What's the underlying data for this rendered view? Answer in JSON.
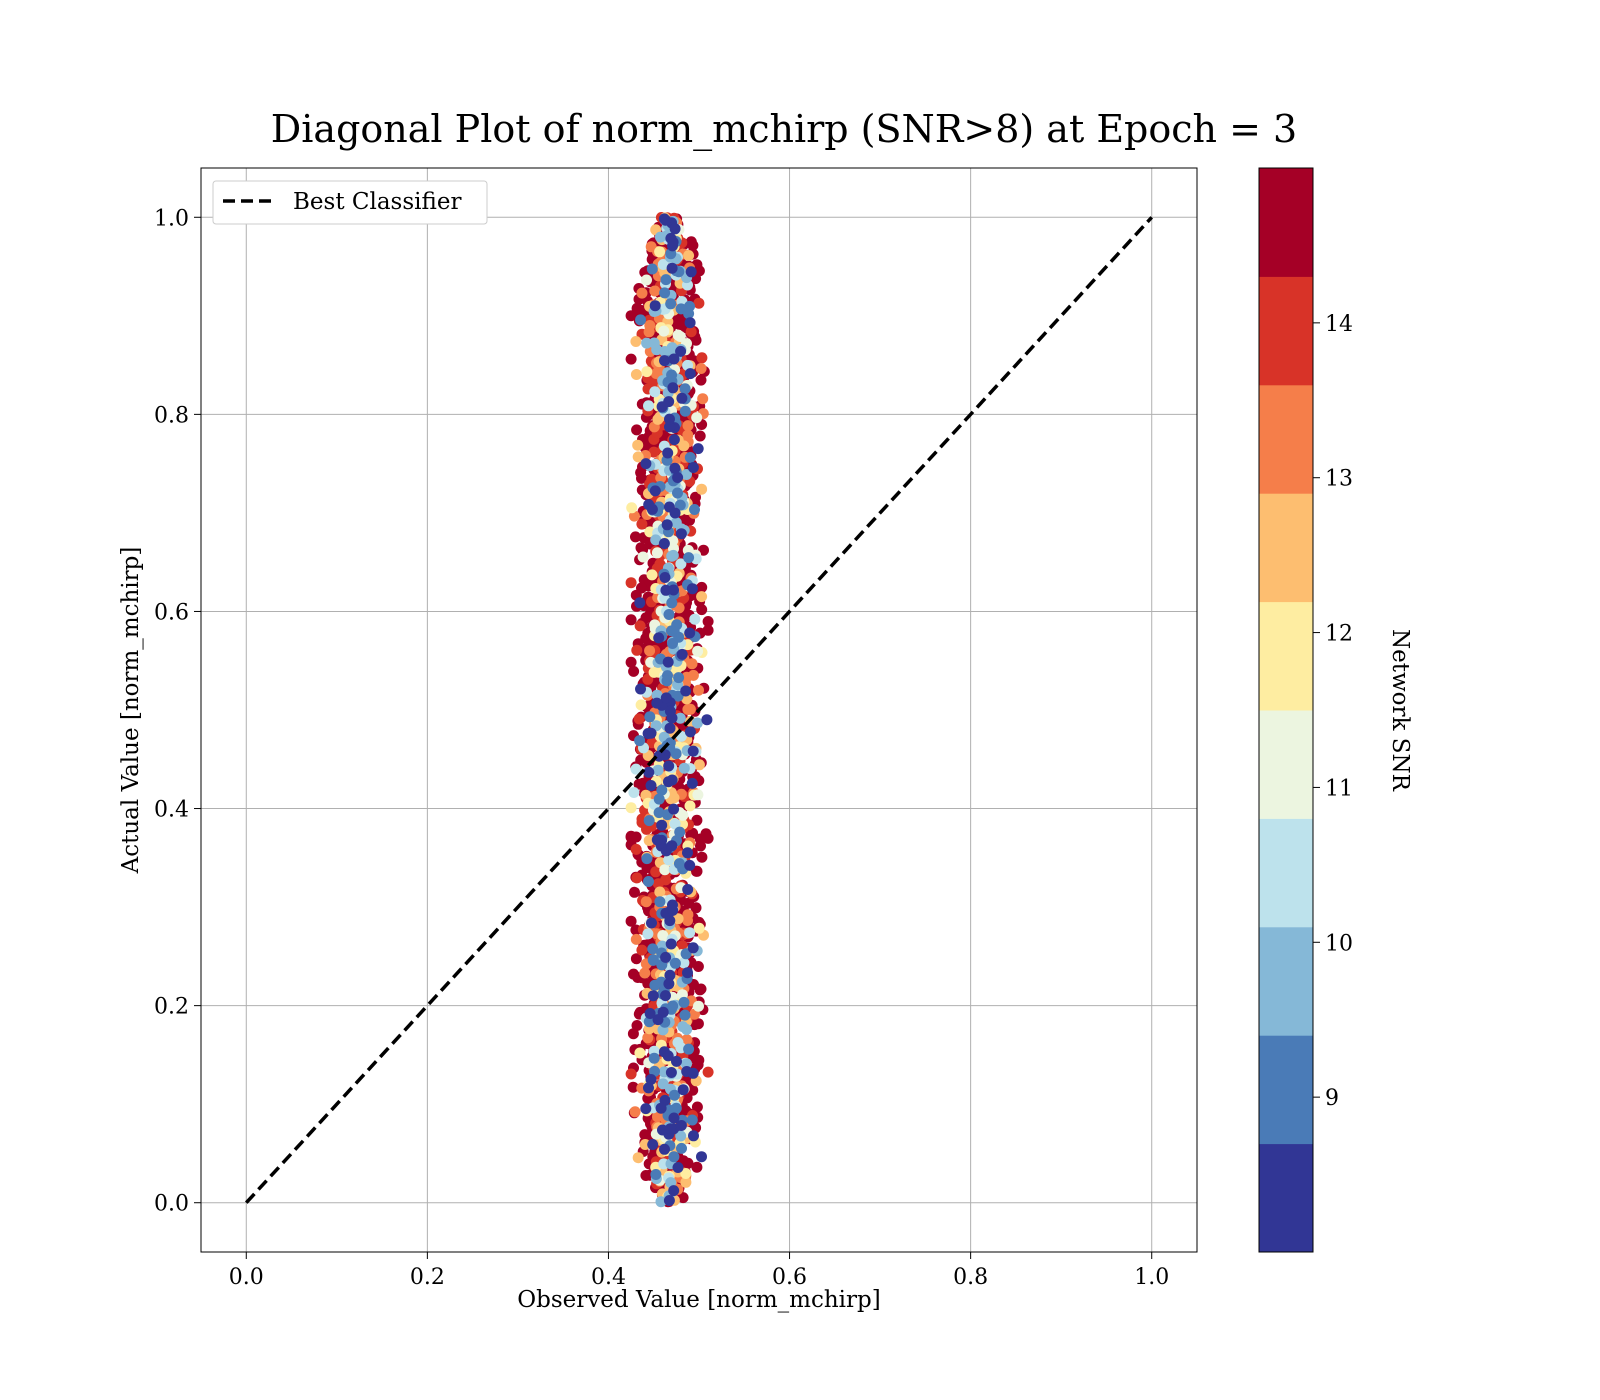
{
  "chart_data": {
    "type": "scatter",
    "title": "Diagonal Plot of norm_mchirp (SNR>8) at Epoch = 3",
    "xlabel": "Observed Value [norm_mchirp]",
    "ylabel": "Actual Value [norm_mchirp]",
    "xlim": [
      -0.05,
      1.05
    ],
    "ylim": [
      -0.05,
      1.05
    ],
    "xticks": [
      0.0,
      0.2,
      0.4,
      0.6,
      0.8,
      1.0
    ],
    "yticks": [
      0.0,
      0.2,
      0.4,
      0.6,
      0.8,
      1.0
    ],
    "x_tick_labels": [
      "0.0",
      "0.2",
      "0.4",
      "0.6",
      "0.8",
      "1.0"
    ],
    "y_tick_labels": [
      "0.0",
      "0.2",
      "0.4",
      "0.6",
      "0.8",
      "1.0"
    ],
    "grid": true,
    "legend": {
      "placement": "upper-left",
      "entries": [
        "Best Classifier"
      ]
    },
    "reference_line": {
      "name": "Best Classifier",
      "style": "dashed",
      "color": "#000000",
      "x": [
        0.0,
        1.0
      ],
      "y": [
        0.0,
        1.0
      ]
    },
    "scatter_description": {
      "x_center": 0.467,
      "x_spread": [
        0.425,
        0.51
      ],
      "y_range": [
        0.0,
        1.0
      ],
      "dominant_color_value": 15
    },
    "colorbar": {
      "label": "Network SNR",
      "range": [
        8,
        15
      ],
      "ticks": [
        9,
        10,
        11,
        12,
        13,
        14
      ],
      "tick_labels": [
        "9",
        "10",
        "11",
        "12",
        "13",
        "14"
      ],
      "bins": [
        {
          "from": 8.0,
          "to": 8.7,
          "color": "#313695"
        },
        {
          "from": 8.7,
          "to": 9.4,
          "color": "#4a7bb7"
        },
        {
          "from": 9.4,
          "to": 10.1,
          "color": "#85b8d7"
        },
        {
          "from": 10.1,
          "to": 10.8,
          "color": "#bde2ec"
        },
        {
          "from": 10.8,
          "to": 11.5,
          "color": "#ecf5e0"
        },
        {
          "from": 11.5,
          "to": 12.2,
          "color": "#feeda1"
        },
        {
          "from": 12.2,
          "to": 12.9,
          "color": "#fdbe70"
        },
        {
          "from": 12.9,
          "to": 13.6,
          "color": "#f57e4a"
        },
        {
          "from": 13.6,
          "to": 14.3,
          "color": "#d83328"
        },
        {
          "from": 14.3,
          "to": 15.0,
          "color": "#a50026"
        }
      ]
    }
  }
}
